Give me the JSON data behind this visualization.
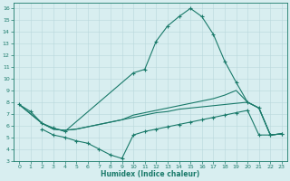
{
  "line1_x": [
    0,
    1,
    2,
    3,
    4,
    10,
    11,
    12,
    13,
    14,
    15,
    16,
    17,
    18,
    19,
    20,
    21,
    22,
    23
  ],
  "line1_y": [
    7.8,
    7.2,
    6.2,
    5.8,
    5.5,
    10.5,
    10.8,
    13.2,
    14.5,
    15.3,
    16.0,
    15.3,
    13.8,
    11.5,
    9.7,
    8.0,
    7.5,
    5.2,
    5.3
  ],
  "line2_x": [
    0,
    2,
    3,
    4,
    5,
    6,
    7,
    8,
    9,
    10,
    11,
    12,
    13,
    14,
    15,
    16,
    17,
    18,
    19,
    20,
    21,
    22,
    23
  ],
  "line2_y": [
    7.8,
    6.2,
    5.7,
    5.6,
    5.7,
    5.9,
    6.1,
    6.3,
    6.5,
    6.7,
    6.9,
    7.1,
    7.2,
    7.4,
    7.5,
    7.6,
    7.7,
    7.8,
    7.9,
    8.0,
    7.5,
    5.2,
    5.3
  ],
  "line3_x": [
    0,
    2,
    3,
    4,
    5,
    6,
    7,
    8,
    9,
    10,
    11,
    12,
    13,
    14,
    15,
    16,
    17,
    18,
    19,
    20,
    21,
    22,
    23
  ],
  "line3_y": [
    7.8,
    6.2,
    5.7,
    5.6,
    5.7,
    5.9,
    6.1,
    6.3,
    6.5,
    6.9,
    7.1,
    7.3,
    7.5,
    7.7,
    7.9,
    8.1,
    8.3,
    8.6,
    9.0,
    8.0,
    7.5,
    5.2,
    5.3
  ],
  "line4_x": [
    2,
    3,
    4,
    5,
    6,
    7,
    8,
    9,
    10,
    11,
    12,
    13,
    14,
    15,
    16,
    17,
    18,
    19,
    20,
    21,
    22,
    23
  ],
  "line4_y": [
    5.7,
    5.2,
    5.0,
    4.7,
    4.5,
    4.0,
    3.5,
    3.2,
    5.2,
    5.5,
    5.7,
    5.9,
    6.1,
    6.3,
    6.5,
    6.7,
    6.9,
    7.1,
    7.3,
    5.2,
    5.2,
    5.3
  ],
  "marker_x1": [
    0,
    1,
    2,
    3,
    4,
    10,
    11,
    12,
    13,
    14,
    15,
    16,
    17,
    18,
    19,
    20,
    21,
    22,
    23
  ],
  "marker_y1": [
    7.8,
    7.2,
    6.2,
    5.8,
    5.5,
    10.5,
    10.8,
    13.2,
    14.5,
    15.3,
    16.0,
    15.3,
    13.8,
    11.5,
    9.7,
    8.0,
    7.5,
    5.2,
    5.3
  ],
  "marker_x4": [
    2,
    3,
    4,
    5,
    6,
    7,
    8,
    9
  ],
  "marker_y4": [
    5.7,
    5.2,
    5.0,
    4.7,
    4.5,
    4.0,
    3.5,
    3.2
  ],
  "line_color": "#1a7a6a",
  "bg_color": "#d8eef0",
  "grid_color": "#b8d8dc",
  "xlabel": "Humidex (Indice chaleur)",
  "xlim": [
    -0.5,
    23.5
  ],
  "ylim": [
    3,
    16.5
  ],
  "yticks": [
    3,
    4,
    5,
    6,
    7,
    8,
    9,
    10,
    11,
    12,
    13,
    14,
    15,
    16
  ],
  "xticks": [
    0,
    1,
    2,
    3,
    4,
    5,
    6,
    7,
    8,
    9,
    10,
    11,
    12,
    13,
    14,
    15,
    16,
    17,
    18,
    19,
    20,
    21,
    22,
    23
  ]
}
